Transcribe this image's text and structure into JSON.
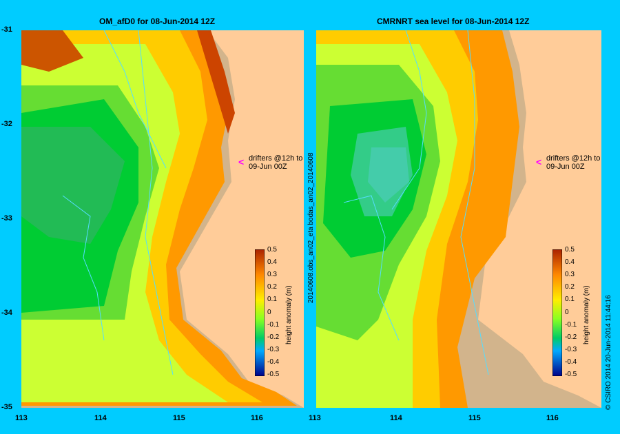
{
  "left_panel": {
    "title": "OM_afD0 for 08-Jun-2014 12Z",
    "drifter_note_line1": "drifters @12h to",
    "drifter_note_line2": "09-Jun 00Z"
  },
  "right_panel": {
    "title": "CMRNRT sea level  for 08-Jun-2014 12Z",
    "drifter_note_line1": "drifters @12h to",
    "drifter_note_line2": "09-Jun 00Z",
    "side_label": "20140608.obs_an02_eta   bodas_an02_20140608"
  },
  "y_ticks": [
    "-31",
    "-32",
    "-33",
    "-34",
    "-35"
  ],
  "x_ticks": [
    "113",
    "114",
    "115",
    "116"
  ],
  "colorbar": {
    "title": "height anomaly (m)",
    "ticks": [
      "0.5",
      "0.4",
      "0.3",
      "0.2",
      "0.1",
      "0",
      "-0.1",
      "-0.2",
      "-0.3",
      "-0.4",
      "-0.5"
    ]
  },
  "footer": "© CSIRO 2014   20-Jun-2014 11:44:16",
  "colors": {
    "background": "#00ccff",
    "land": "#ffcc99",
    "coast": "#c4a48a",
    "drifter": "#ff00ff"
  }
}
